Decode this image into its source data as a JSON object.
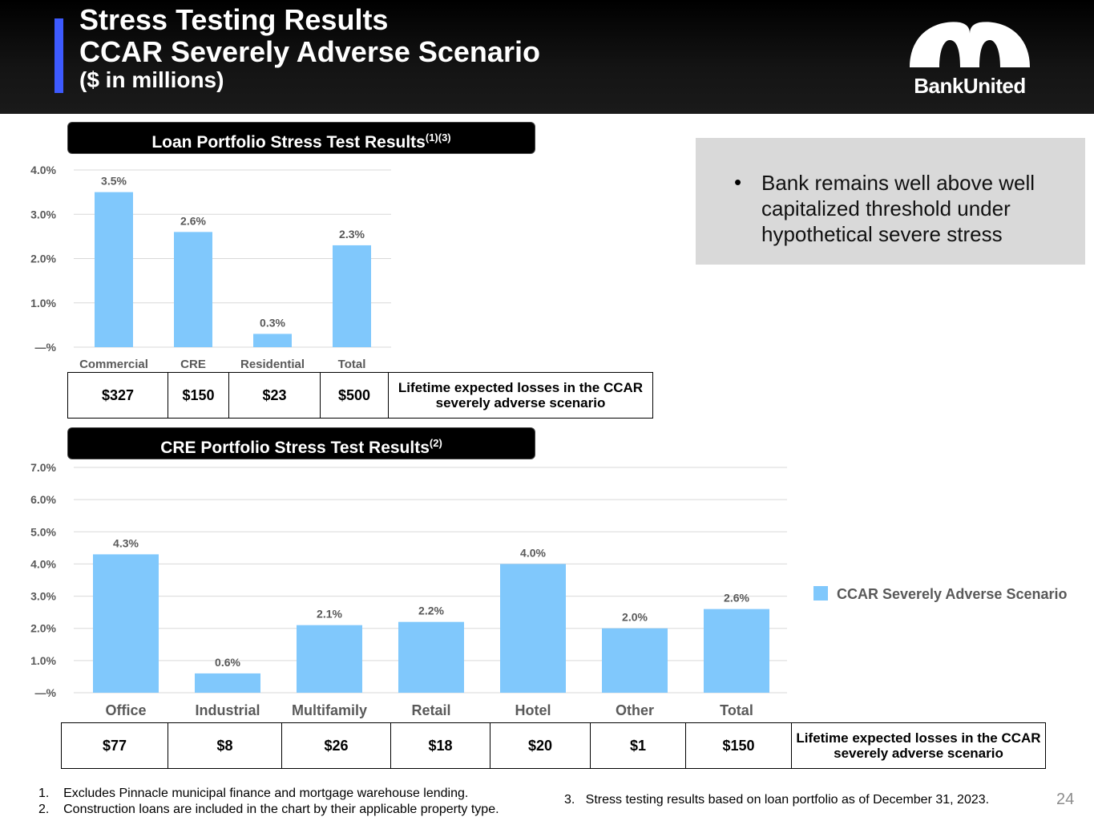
{
  "header": {
    "title_line1": "Stress Testing Results",
    "title_line2": "CCAR Severely Adverse Scenario",
    "title_line3": "($ in millions)",
    "logo_text": "BankUnited"
  },
  "loan_section": {
    "title": "Loan Portfolio Stress Test Results",
    "sup": "(1)(3)"
  },
  "cre_section": {
    "title": "CRE Portfolio Stress Test Results",
    "sup": "(2)"
  },
  "callout": {
    "bullet": "•",
    "text": "Bank remains well above well capitalized threshold under hypothetical severe stress"
  },
  "legend": {
    "label": "CCAR Severely Adverse Scenario"
  },
  "loan_losses": {
    "values": [
      "$327",
      "$150",
      "$23",
      "$500"
    ],
    "desc": "Lifetime expected losses in the CCAR severely adverse scenario"
  },
  "cre_losses": {
    "values": [
      "$77",
      "$8",
      "$26",
      "$18",
      "$20",
      "$1",
      "$150"
    ],
    "desc": "Lifetime expected losses in the CCAR severely adverse scenario"
  },
  "footnotes": {
    "fn1": "1.    Excludes Pinnacle municipal finance and mortgage warehouse lending.",
    "fn2": "2.    Construction loans are included in the chart by their applicable property type.",
    "fn3": "3.   Stress testing results based on loan portfolio as of December 31, 2023."
  },
  "page_number": "24",
  "colors": {
    "bar": "#80c8fc",
    "accent": "#3d5afe",
    "grid": "#d9d9d9",
    "label": "#595959"
  },
  "chart_data": [
    {
      "type": "bar",
      "title": "Loan Portfolio Stress Test Results",
      "categories": [
        "Commercial",
        "CRE",
        "Residential",
        "Total"
      ],
      "values": [
        3.5,
        2.6,
        0.3,
        2.3
      ],
      "data_labels": [
        "3.5%",
        "2.6%",
        "0.3%",
        "2.3%"
      ],
      "yticks": [
        0,
        1,
        2,
        3,
        4
      ],
      "ytick_labels": [
        "—%",
        "1.0%",
        "2.0%",
        "3.0%",
        "4.0%"
      ],
      "ylim": [
        0,
        4
      ],
      "series_name": "CCAR Severely Adverse Scenario"
    },
    {
      "type": "bar",
      "title": "CRE Portfolio Stress Test Results",
      "categories": [
        "Office",
        "Industrial",
        "Multifamily",
        "Retail",
        "Hotel",
        "Other",
        "Total"
      ],
      "values": [
        4.3,
        0.6,
        2.1,
        2.2,
        4.0,
        2.0,
        2.6
      ],
      "data_labels": [
        "4.3%",
        "0.6%",
        "2.1%",
        "2.2%",
        "4.0%",
        "2.0%",
        "2.6%"
      ],
      "yticks": [
        0,
        1,
        2,
        3,
        4,
        5,
        6,
        7
      ],
      "ytick_labels": [
        "—%",
        "1.0%",
        "2.0%",
        "3.0%",
        "4.0%",
        "5.0%",
        "6.0%",
        "7.0%"
      ],
      "ylim": [
        0,
        7
      ],
      "series_name": "CCAR Severely Adverse Scenario"
    }
  ]
}
